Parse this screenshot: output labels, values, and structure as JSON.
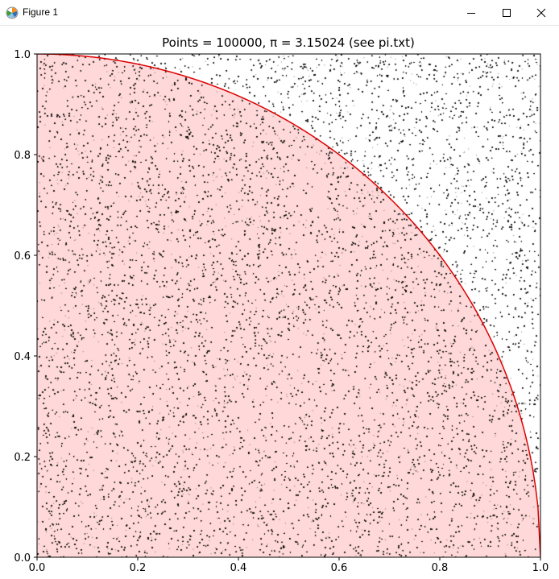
{
  "window": {
    "title": "Figure 1",
    "controls": [
      "minimize",
      "maximize",
      "close"
    ]
  },
  "colors": {
    "points": "#000000",
    "inside_fill": "#ffd9d9",
    "quarter_circle": "#dd0000",
    "frame": "#000000"
  },
  "chart_data": {
    "type": "scatter",
    "title": "Points = 100000, π = 3.15024 (see pi.txt)",
    "xlabel": "",
    "ylabel": "",
    "xlim": [
      0.0,
      1.0
    ],
    "ylim": [
      0.0,
      1.0
    ],
    "x_ticks": [
      "0.0",
      "0.2",
      "0.4",
      "0.6",
      "0.8",
      "1.0"
    ],
    "y_ticks": [
      "0.0",
      "0.2",
      "0.4",
      "0.6",
      "0.8",
      "1.0"
    ],
    "grid": false,
    "legend": "none",
    "points_total": 100000,
    "pi_estimate": 3.15024,
    "distribution": "uniform random in unit square",
    "series": [
      {
        "kind": "line",
        "function": "y = sqrt(1 - x^2)",
        "x_range": [
          0.0,
          1.0
        ],
        "color": "#dd0000"
      }
    ]
  }
}
